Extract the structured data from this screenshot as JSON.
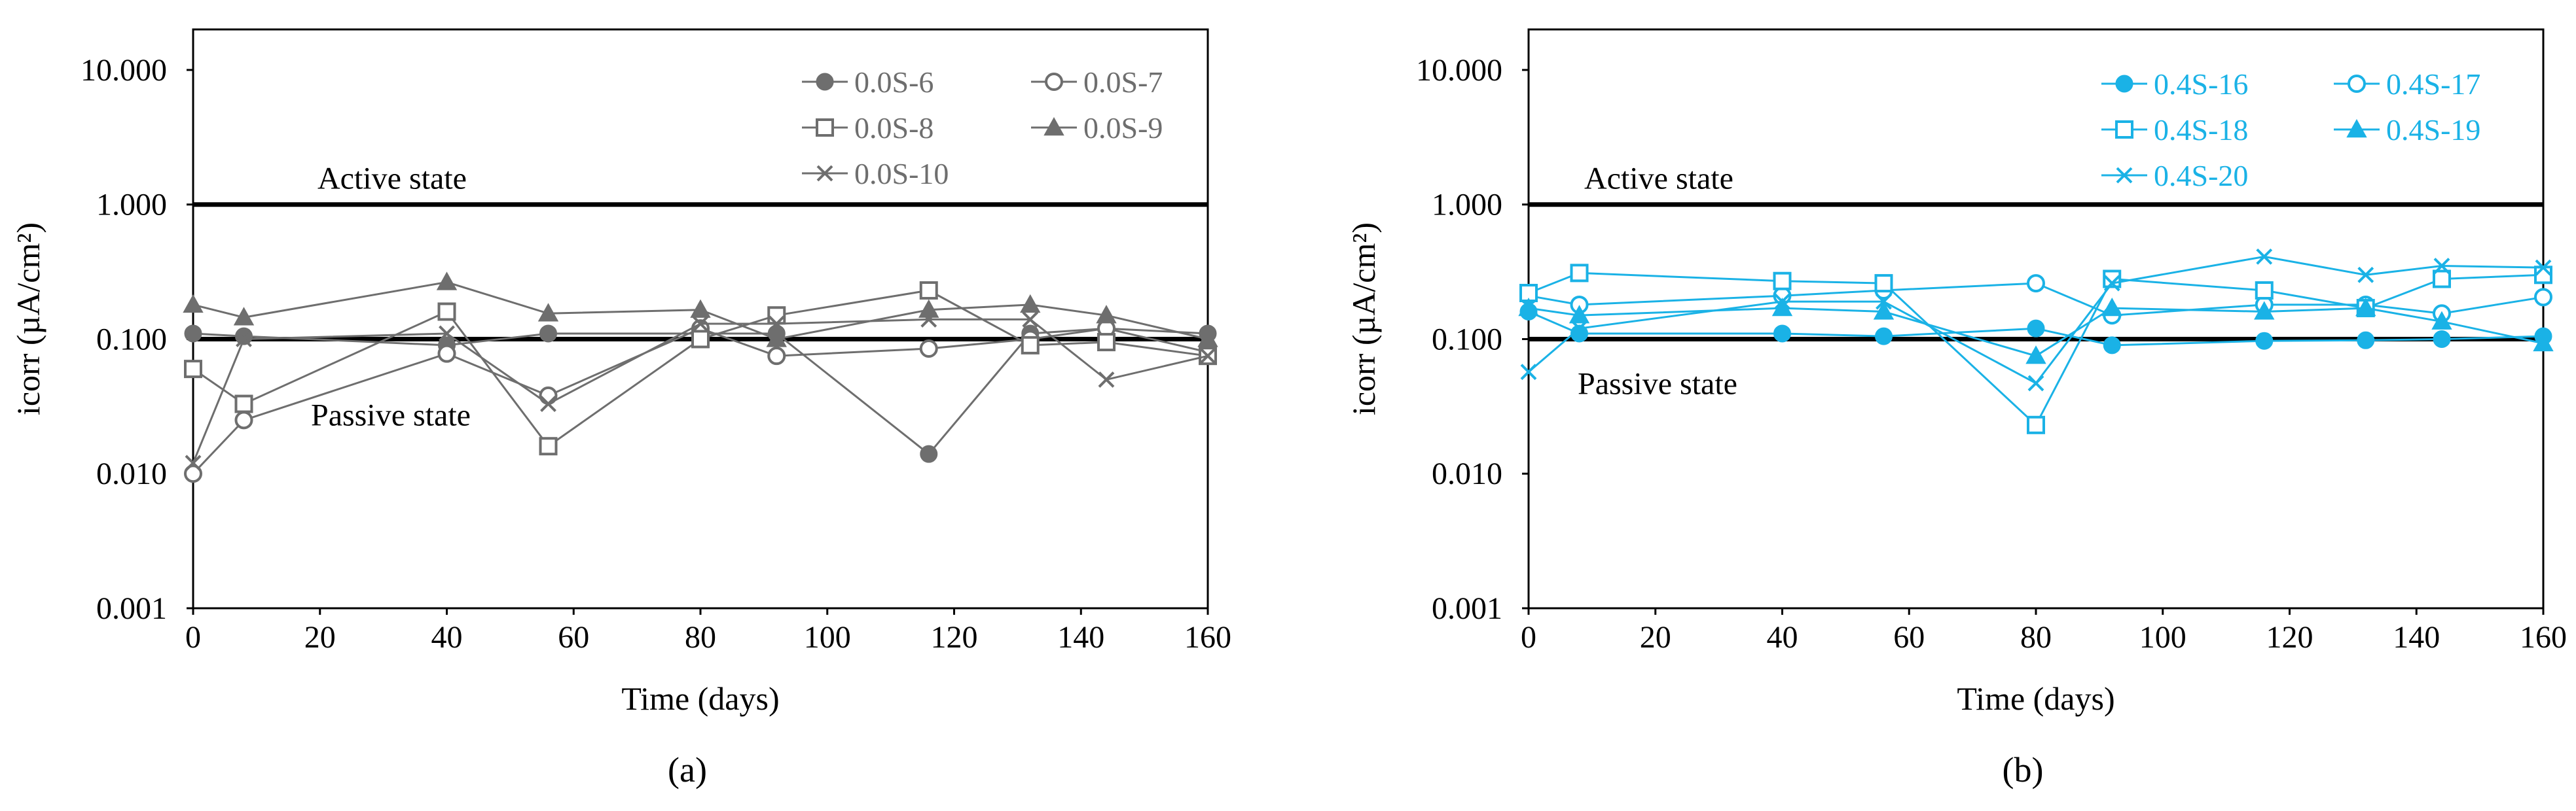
{
  "chart_data": [
    {
      "type": "line",
      "panel_label": "(a)",
      "xlabel": "Time (days)",
      "ylabel": "icorr (µA/cm²)",
      "y_scale": "log",
      "ylim": [
        0.001,
        20
      ],
      "xlim": [
        0,
        160
      ],
      "xticks": [
        "0",
        "20",
        "40",
        "60",
        "80",
        "100",
        "120",
        "140",
        "160"
      ],
      "yticks": [
        "0.001",
        "0.010",
        "0.100",
        "1.000",
        "10.000"
      ],
      "grid": false,
      "legend": "top-right",
      "color": "#6e6e6e",
      "reference_lines": [
        {
          "label": "Active state",
          "y": 1.0
        },
        {
          "label": "Passive state",
          "y": 0.1
        }
      ],
      "series": [
        {
          "name": "0.0S-6",
          "marker": "filled-circle",
          "x": [
            0,
            8,
            40,
            56,
            80,
            92,
            116,
            132,
            144,
            160
          ],
          "y": [
            0.11,
            0.105,
            0.09,
            0.11,
            0.11,
            0.11,
            0.014,
            0.11,
            0.12,
            0.11
          ]
        },
        {
          "name": "0.0S-7",
          "marker": "open-circle",
          "x": [
            0,
            8,
            40,
            56,
            80,
            92,
            116,
            132,
            144,
            160
          ],
          "y": [
            0.01,
            0.025,
            0.078,
            0.038,
            0.12,
            0.075,
            0.085,
            0.1,
            0.12,
            0.08
          ]
        },
        {
          "name": "0.0S-8",
          "marker": "open-square",
          "x": [
            0,
            8,
            40,
            56,
            80,
            92,
            116,
            132,
            144,
            160
          ],
          "y": [
            0.06,
            0.033,
            0.16,
            0.016,
            0.1,
            0.15,
            0.23,
            0.09,
            0.095,
            0.075
          ]
        },
        {
          "name": "0.0S-9",
          "marker": "filled-triangle",
          "x": [
            0,
            8,
            40,
            56,
            80,
            92,
            116,
            132,
            144,
            160
          ],
          "y": [
            0.18,
            0.145,
            0.265,
            0.155,
            0.165,
            0.1,
            0.165,
            0.18,
            0.15,
            0.1
          ]
        },
        {
          "name": "0.0S-10",
          "marker": "cross",
          "x": [
            0,
            8,
            40,
            56,
            80,
            92,
            116,
            132,
            144,
            160
          ],
          "y": [
            0.012,
            0.1,
            0.11,
            0.033,
            0.13,
            0.13,
            0.14,
            0.14,
            0.05,
            0.075
          ]
        }
      ]
    },
    {
      "type": "line",
      "panel_label": "(b)",
      "xlabel": "Time (days)",
      "ylabel": "icorr (µA/cm²)",
      "y_scale": "log",
      "ylim": [
        0.001,
        20
      ],
      "xlim": [
        0,
        160
      ],
      "xticks": [
        "0",
        "20",
        "40",
        "60",
        "80",
        "100",
        "120",
        "140",
        "160"
      ],
      "yticks": [
        "0.001",
        "0.010",
        "0.100",
        "1.000",
        "10.000"
      ],
      "grid": false,
      "legend": "top-right",
      "color": "#1ab2e6",
      "reference_lines": [
        {
          "label": "Active state",
          "y": 1.0
        },
        {
          "label": "Passive state",
          "y": 0.1
        }
      ],
      "series": [
        {
          "name": "0.4S-16",
          "marker": "filled-circle",
          "x": [
            0,
            8,
            40,
            56,
            80,
            92,
            116,
            132,
            144,
            160
          ],
          "y": [
            0.16,
            0.11,
            0.11,
            0.105,
            0.12,
            0.09,
            0.097,
            0.098,
            0.1,
            0.105
          ]
        },
        {
          "name": "0.4S-17",
          "marker": "open-circle",
          "x": [
            0,
            8,
            40,
            56,
            80,
            92,
            116,
            132,
            144,
            160
          ],
          "y": [
            0.21,
            0.18,
            0.21,
            0.23,
            0.26,
            0.15,
            0.18,
            0.18,
            0.155,
            0.205
          ]
        },
        {
          "name": "0.4S-18",
          "marker": "open-square",
          "x": [
            0,
            8,
            40,
            56,
            80,
            92,
            116,
            132,
            144,
            160
          ],
          "y": [
            0.22,
            0.31,
            0.27,
            0.26,
            0.023,
            0.28,
            0.23,
            0.17,
            0.28,
            0.3
          ]
        },
        {
          "name": "0.4S-19",
          "marker": "filled-triangle",
          "x": [
            0,
            8,
            40,
            56,
            80,
            92,
            116,
            132,
            144,
            160
          ],
          "y": [
            0.17,
            0.15,
            0.17,
            0.16,
            0.075,
            0.17,
            0.16,
            0.17,
            0.135,
            0.093
          ]
        },
        {
          "name": "0.4S-20",
          "marker": "cross",
          "x": [
            0,
            8,
            40,
            56,
            80,
            92,
            116,
            132,
            144,
            160
          ],
          "y": [
            0.057,
            0.12,
            0.19,
            0.19,
            0.047,
            0.26,
            0.41,
            0.3,
            0.35,
            0.34
          ]
        }
      ]
    }
  ]
}
